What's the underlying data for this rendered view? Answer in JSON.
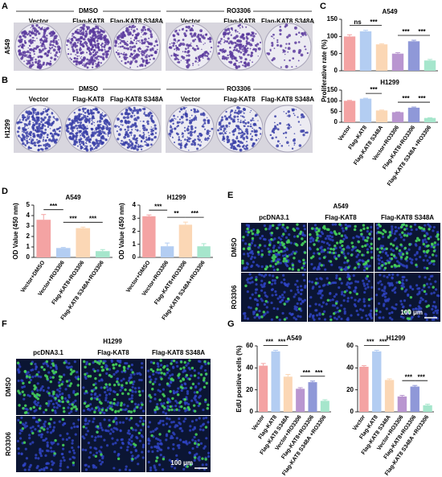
{
  "panel_letters": [
    "A",
    "B",
    "C",
    "D",
    "E",
    "F",
    "G"
  ],
  "image_panels": [
    {
      "groups": [
        "DMSO",
        "RO3306"
      ],
      "columns": [
        "Vector",
        "Flag-KAT8",
        "Flag-KAT8 S348A",
        "Vector",
        "Flag-KAT8",
        "Flag-KAT8 S348A"
      ],
      "row_label": "A549"
    },
    {
      "groups": [
        "DMSO",
        "RO3306"
      ],
      "columns": [
        "Vector",
        "Flag-KAT8",
        "Flag-KAT8 S348A",
        "Vector",
        "Flag-KAT8",
        "Flag-KAT8 S348A"
      ],
      "row_label": "H1299"
    },
    {
      "title": "A549",
      "columns": [
        "pcDNA3.1",
        "Flag-KAT8",
        "Flag-KAT8 S348A"
      ],
      "rows": [
        "DMSO",
        "RO3306"
      ],
      "scale_bar": "100 μm"
    },
    {
      "title": "H1299",
      "columns": [
        "pcDNA3.1",
        "Flag-KAT8",
        "Flag-KAT8 S348A"
      ],
      "rows": [
        "DMSO",
        "RO3306"
      ],
      "scale_bar": "100 μm"
    }
  ],
  "chart_data": [
    {
      "type": "bar",
      "title": "A549",
      "ylabel": "Proliferative rate (%)",
      "values": [
        100,
        115,
        77,
        50,
        86,
        30
      ],
      "errors": [
        5,
        3,
        2,
        3,
        3,
        3
      ],
      "colors": [
        "#f4a3a3",
        "#b3cdf2",
        "#fbd7b5",
        "#b996d0",
        "#8f98d8",
        "#a6e6cc"
      ],
      "ylim": [
        0,
        150
      ],
      "yticks": [
        0,
        50,
        100,
        150
      ],
      "annotations": [
        {
          "text": "ns",
          "pair": [
            0,
            1
          ]
        },
        {
          "text": "***",
          "pair": [
            1,
            2
          ]
        },
        {
          "text": "***",
          "pair": [
            3,
            4
          ]
        },
        {
          "text": "***",
          "pair": [
            4,
            5
          ]
        }
      ]
    },
    {
      "type": "bar",
      "title": "H1299",
      "categories": [
        "Vector",
        "Flag-KAT8",
        "Flag-KAT8 S348A",
        "Vector+RO3306",
        "Flag-KAT8+RO3306",
        "Flag-KAT8 S348A +RO3306"
      ],
      "values": [
        100,
        110,
        55,
        47,
        68,
        20
      ],
      "errors": [
        2,
        2,
        2,
        1,
        3,
        1
      ],
      "colors": [
        "#f4a3a3",
        "#b3cdf2",
        "#fbd7b5",
        "#b996d0",
        "#8f98d8",
        "#a6e6cc"
      ],
      "ylim": [
        0,
        150
      ],
      "yticks": [
        0,
        50,
        100,
        150
      ],
      "annotations": [
        {
          "text": "***",
          "pair": [
            1,
            2
          ]
        },
        {
          "text": "***",
          "pair": [
            3,
            4
          ]
        },
        {
          "text": "***",
          "pair": [
            4,
            5
          ]
        }
      ]
    },
    {
      "type": "bar",
      "title": "A549",
      "ylabel": "OD Value (450 nm)",
      "categories": [
        "Vector+DMSO",
        "Vector+RO3306",
        "Flag-KAT8+RO3306",
        "Flag-KAT8 S348A+RO3306"
      ],
      "values": [
        3.6,
        0.9,
        2.8,
        0.6
      ],
      "errors": [
        0.5,
        0.05,
        0.1,
        0.15
      ],
      "colors": [
        "#f4a3a3",
        "#b3cdf2",
        "#fbd7b5",
        "#a6e6cc"
      ],
      "ylim": [
        0,
        5
      ],
      "yticks": [
        0,
        1,
        2,
        3,
        4,
        5
      ],
      "annotations": [
        {
          "text": "***",
          "pair": [
            0,
            1
          ]
        },
        {
          "text": "***",
          "pair": [
            1,
            2
          ]
        },
        {
          "text": "***",
          "pair": [
            2,
            3
          ]
        }
      ]
    },
    {
      "type": "bar",
      "title": "H1299",
      "ylabel": "OD Value (450 nm)",
      "categories": [
        "Vector+DMSO",
        "Vector+RO3306",
        "Flag-KAT8+RO3306",
        "Flag-KAT8 S348A+RO3306"
      ],
      "values": [
        3.15,
        0.85,
        2.5,
        0.85
      ],
      "errors": [
        0.1,
        0.25,
        0.2,
        0.2
      ],
      "colors": [
        "#f4a3a3",
        "#b3cdf2",
        "#fbd7b5",
        "#a6e6cc"
      ],
      "ylim": [
        0,
        4
      ],
      "yticks": [
        0,
        1,
        2,
        3,
        4
      ],
      "annotations": [
        {
          "text": "***",
          "pair": [
            0,
            1
          ]
        },
        {
          "text": "**",
          "pair": [
            1,
            2
          ]
        },
        {
          "text": "***",
          "pair": [
            2,
            3
          ]
        }
      ]
    },
    {
      "type": "bar",
      "title": "A549",
      "ylabel": "EdU positive cells (%)",
      "categories": [
        "Vector",
        "Flag-KAT8",
        "Flag-KAT8 S348A",
        "Vector+RO3306",
        "Flag-KAT8+RO3306",
        "Flag-KAT8 S348A +RO3306"
      ],
      "values": [
        42,
        55,
        32,
        21,
        27,
        10
      ],
      "errors": [
        2,
        1,
        2,
        1,
        1,
        1
      ],
      "colors": [
        "#f4a3a3",
        "#b3cdf2",
        "#fbd7b5",
        "#b996d0",
        "#8f98d8",
        "#a6e6cc"
      ],
      "ylim": [
        0,
        60
      ],
      "yticks": [
        0,
        20,
        40,
        60
      ],
      "annotations": [
        {
          "text": "***",
          "pair": [
            0,
            1
          ]
        },
        {
          "text": "***",
          "pair": [
            1,
            2
          ]
        },
        {
          "text": "***",
          "pair": [
            3,
            4
          ]
        },
        {
          "text": "***",
          "pair": [
            4,
            5
          ]
        }
      ]
    },
    {
      "type": "bar",
      "title": "H1299",
      "categories": [
        "Vector",
        "Flag-KAT8",
        "Flag-KAT8 S348A",
        "Vector+RO3306",
        "Flag-KAT8+RO3306",
        "Flag-KAT8 S348A +RO3306"
      ],
      "values": [
        41,
        55,
        29,
        14,
        23,
        6
      ],
      "errors": [
        1,
        1,
        1,
        1,
        1,
        1
      ],
      "colors": [
        "#f4a3a3",
        "#b3cdf2",
        "#fbd7b5",
        "#b996d0",
        "#8f98d8",
        "#a6e6cc"
      ],
      "ylim": [
        0,
        60
      ],
      "yticks": [
        0,
        20,
        40,
        60
      ],
      "annotations": [
        {
          "text": "***",
          "pair": [
            0,
            1
          ]
        },
        {
          "text": "***",
          "pair": [
            1,
            2
          ]
        },
        {
          "text": "***",
          "pair": [
            3,
            4
          ]
        },
        {
          "text": "***",
          "pair": [
            4,
            5
          ]
        }
      ]
    }
  ]
}
